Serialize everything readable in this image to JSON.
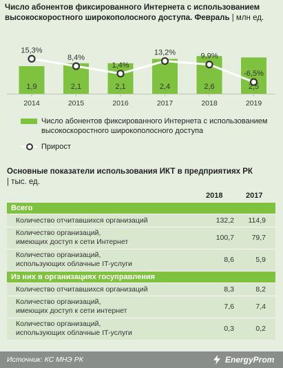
{
  "header": {
    "title": "Число абонентов фиксированного Интернета с использованием высокоскоростного широкополосного доступа. Февраль",
    "unit": "| млн ед."
  },
  "chart_data": {
    "type": "bar",
    "categories": [
      "2014",
      "2015",
      "2016",
      "2017",
      "2018",
      "2019"
    ],
    "series": [
      {
        "name": "Число абонентов фиксированного Интернета с использованием высокоскоростного широкополосного доступа",
        "values": [
          1.9,
          2.1,
          2.1,
          2.4,
          2.6,
          2.5
        ],
        "labels": [
          "1,9",
          "2,1",
          "2,1",
          "2,4",
          "2,6",
          "2,5"
        ],
        "color": "#7fc240"
      },
      {
        "name": "Прирост",
        "type": "line",
        "values": [
          15.3,
          8.4,
          1.4,
          13.2,
          9.9,
          -6.5
        ],
        "labels": [
          "15,3%",
          "8,4%",
          "1,4%",
          "13,2%",
          "9,9%",
          "-6,5%"
        ],
        "color": "#ffffff"
      }
    ],
    "legend": "bottom",
    "grid": false
  },
  "table": {
    "title": "Основные показатели использования ИКТ в предприятиях РК",
    "unit": "| тыс. ед.",
    "columns": [
      "2018",
      "2017"
    ],
    "sections": [
      {
        "title": "Всего",
        "rows": [
          {
            "label": [
              "Количество отчитавшихся организаций"
            ],
            "v2018": "132,2",
            "v2017": "114,9"
          },
          {
            "label": [
              "Количество организаций,",
              "имеющих доступ к сети Интернет"
            ],
            "v2018": "100,7",
            "v2017": "79,7"
          },
          {
            "label": [
              "Количество организаций,",
              "использующих облачные IT-услуги"
            ],
            "v2018": "8,6",
            "v2017": "5,9"
          }
        ]
      },
      {
        "title": "Из них в организациях госуправления",
        "rows": [
          {
            "label": [
              "Количество отчитавшихся организаций"
            ],
            "v2018": "8,3",
            "v2017": "8,2"
          },
          {
            "label": [
              "Количество организаций,",
              "имеющих доступ к сети интернет"
            ],
            "v2018": "7,6",
            "v2017": "7,4"
          },
          {
            "label": [
              "Количество организаций,",
              "использующих облачные IT-услуги"
            ],
            "v2018": "0,3",
            "v2017": "0,2"
          }
        ]
      }
    ]
  },
  "footer": {
    "source": "Источник: КС МНЭ РК",
    "brand": "EnergyProm",
    "logo_icon": "energyprom-logo-icon"
  }
}
